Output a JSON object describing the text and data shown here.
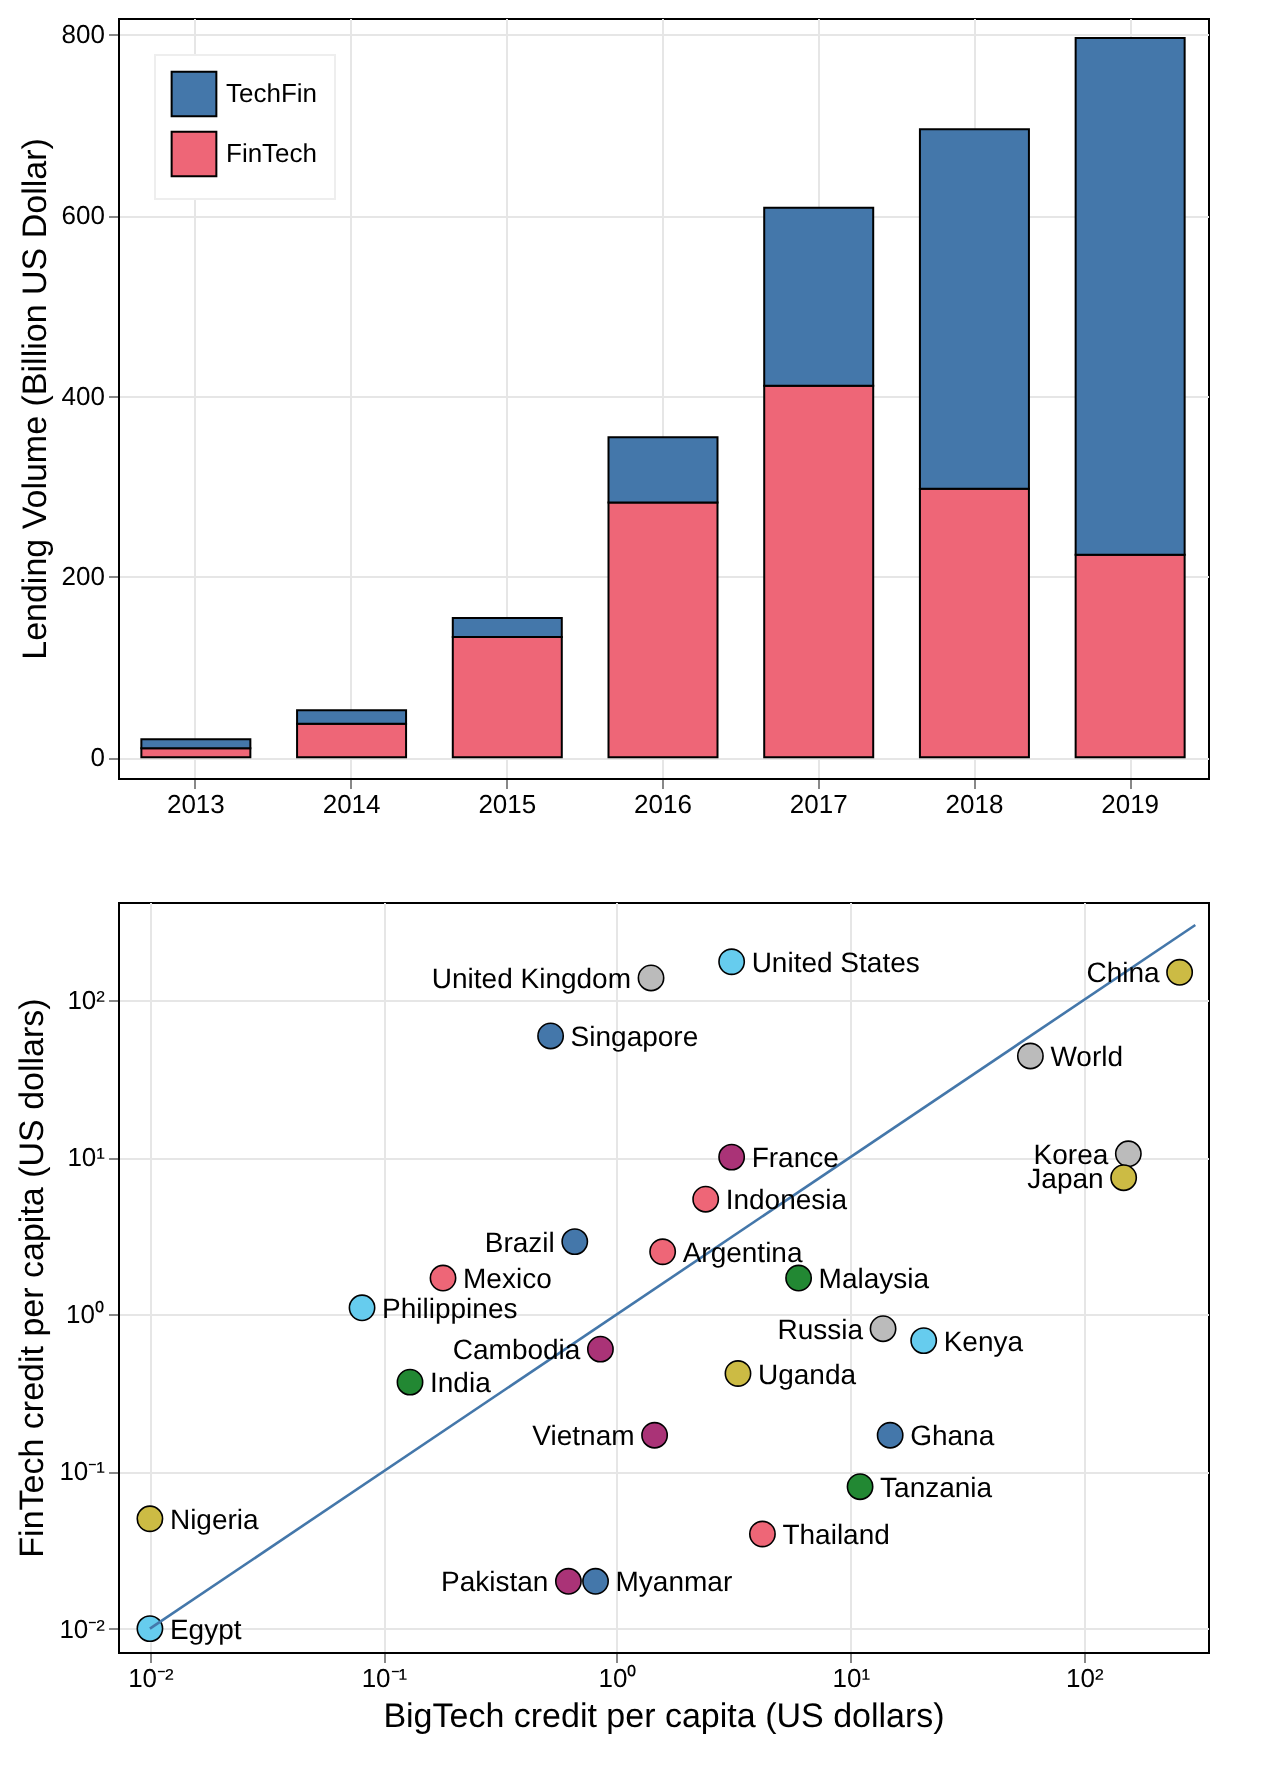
{
  "chart_data": [
    {
      "type": "bar",
      "ylabel": "Lending Volume (Billion US Dollar)",
      "categories": [
        "2013",
        "2014",
        "2015",
        "2016",
        "2017",
        "2018",
        "2019"
      ],
      "stacked": true,
      "series": [
        {
          "name": "FinTech",
          "color": "#ee6677",
          "values": [
            10,
            37,
            133,
            282,
            411,
            297,
            224
          ]
        },
        {
          "name": "TechFin",
          "color": "#4477aa",
          "values": [
            10,
            15,
            21,
            72,
            197,
            398,
            572
          ]
        }
      ],
      "ylim": [
        -23,
        818
      ],
      "yticks": [
        0,
        200,
        400,
        600,
        800
      ],
      "grid": true,
      "legend": "top left"
    },
    {
      "type": "scatter",
      "xlabel": "BigTech credit per capita (US dollars)",
      "ylabel": "FinTech credit per capita (US dollars)",
      "log": "xy",
      "grid": true,
      "marker": "circle",
      "series": [
        {
          "x": [
            3.1,
            1.4,
            257,
            0.52,
            59,
            155,
            148,
            3.1,
            2.4,
            0.66,
            1.57,
            6.0,
            0.18,
            0.081,
            13.8,
            20.6,
            0.85,
            0.13,
            3.3,
            1.45,
            14.8,
            11,
            4.2,
            0.01,
            0.62,
            0.81,
            0.01
          ],
          "values": [
            175,
            138,
            150,
            59,
            44,
            10.5,
            7.4,
            10,
            5.4,
            2.9,
            2.5,
            1.7,
            1.7,
            1.1,
            0.81,
            0.68,
            0.6,
            0.37,
            0.42,
            0.17,
            0.17,
            0.08,
            0.04,
            0.05,
            0.02,
            0.02,
            0.01
          ],
          "colors": [
            "#66ccee",
            "#bbbbbb",
            "#ccbb44",
            "#4477aa",
            "#bbbbbb",
            "#bbbbbb",
            "#ccbb44",
            "#aa3377",
            "#ee6677",
            "#4477aa",
            "#ee6677",
            "#228833",
            "#ee6677",
            "#66ccee",
            "#bbbbbb",
            "#66ccee",
            "#aa3377",
            "#228833",
            "#ccbb44",
            "#aa3377",
            "#4477aa",
            "#228833",
            "#ee6677",
            "#ccbb44",
            "#aa3377",
            "#4477aa",
            "#66ccee"
          ]
        },
        {
          "type": "line",
          "color": "#4477aa",
          "marker": "none",
          "x": [
            0.01,
            300
          ],
          "values": [
            0.01,
            300
          ]
        }
      ],
      "annotations": [
        {
          "text": "United States",
          "x": 3.1,
          "y": 175
        },
        {
          "text": "United Kingdom",
          "x": 1.4,
          "y": 138
        },
        {
          "text": "China",
          "x": 257,
          "y": 150
        },
        {
          "text": "Singapore",
          "x": 0.52,
          "y": 59
        },
        {
          "text": "World",
          "x": 59,
          "y": 44
        },
        {
          "text": "Korea",
          "x": 155,
          "y": 10.5
        },
        {
          "text": "Japan",
          "x": 148,
          "y": 7.4
        },
        {
          "text": "France",
          "x": 3.1,
          "y": 10
        },
        {
          "text": "Indonesia",
          "x": 2.4,
          "y": 5.4
        },
        {
          "text": "Brazil",
          "x": 0.66,
          "y": 2.9
        },
        {
          "text": "Argentina",
          "x": 1.57,
          "y": 2.5
        },
        {
          "text": "Malaysia",
          "x": 6.0,
          "y": 1.7
        },
        {
          "text": "Mexico",
          "x": 0.18,
          "y": 1.7
        },
        {
          "text": "Philippines",
          "x": 0.081,
          "y": 1.1
        },
        {
          "text": "Russia",
          "x": 13.8,
          "y": 0.81
        },
        {
          "text": "Kenya",
          "x": 20.6,
          "y": 0.68
        },
        {
          "text": "Cambodia",
          "x": 0.85,
          "y": 0.6
        },
        {
          "text": "India",
          "x": 0.13,
          "y": 0.37
        },
        {
          "text": "Uganda",
          "x": 3.3,
          "y": 0.42
        },
        {
          "text": "Vietnam",
          "x": 1.45,
          "y": 0.17
        },
        {
          "text": "Ghana",
          "x": 14.8,
          "y": 0.17
        },
        {
          "text": "Tanzania",
          "x": 11,
          "y": 0.08
        },
        {
          "text": "Thailand",
          "x": 4.2,
          "y": 0.04
        },
        {
          "text": "Nigeria",
          "x": 0.01,
          "y": 0.05
        },
        {
          "text": "Pakistan",
          "x": 0.62,
          "y": 0.02
        },
        {
          "text": "Myanmar",
          "x": 0.81,
          "y": 0.02
        },
        {
          "text": "Egypt",
          "x": 0.01,
          "y": 0.01
        }
      ],
      "xlim": [
        0.0073,
        340
      ],
      "ylim": [
        0.0071,
        420
      ],
      "xticks": [
        {
          "value": 0.01,
          "label": "10⁻²"
        },
        {
          "value": 0.1,
          "label": "10⁻¹"
        },
        {
          "value": 1,
          "label": "10⁰"
        },
        {
          "value": 10,
          "label": "10¹"
        },
        {
          "value": 100,
          "label": "10²"
        }
      ],
      "yticks": [
        {
          "value": 0.01,
          "label": "10⁻²"
        },
        {
          "value": 0.1,
          "label": "10⁻¹"
        },
        {
          "value": 1,
          "label": "10⁰"
        },
        {
          "value": 10,
          "label": "10¹"
        },
        {
          "value": 100,
          "label": "10²"
        }
      ]
    }
  ]
}
